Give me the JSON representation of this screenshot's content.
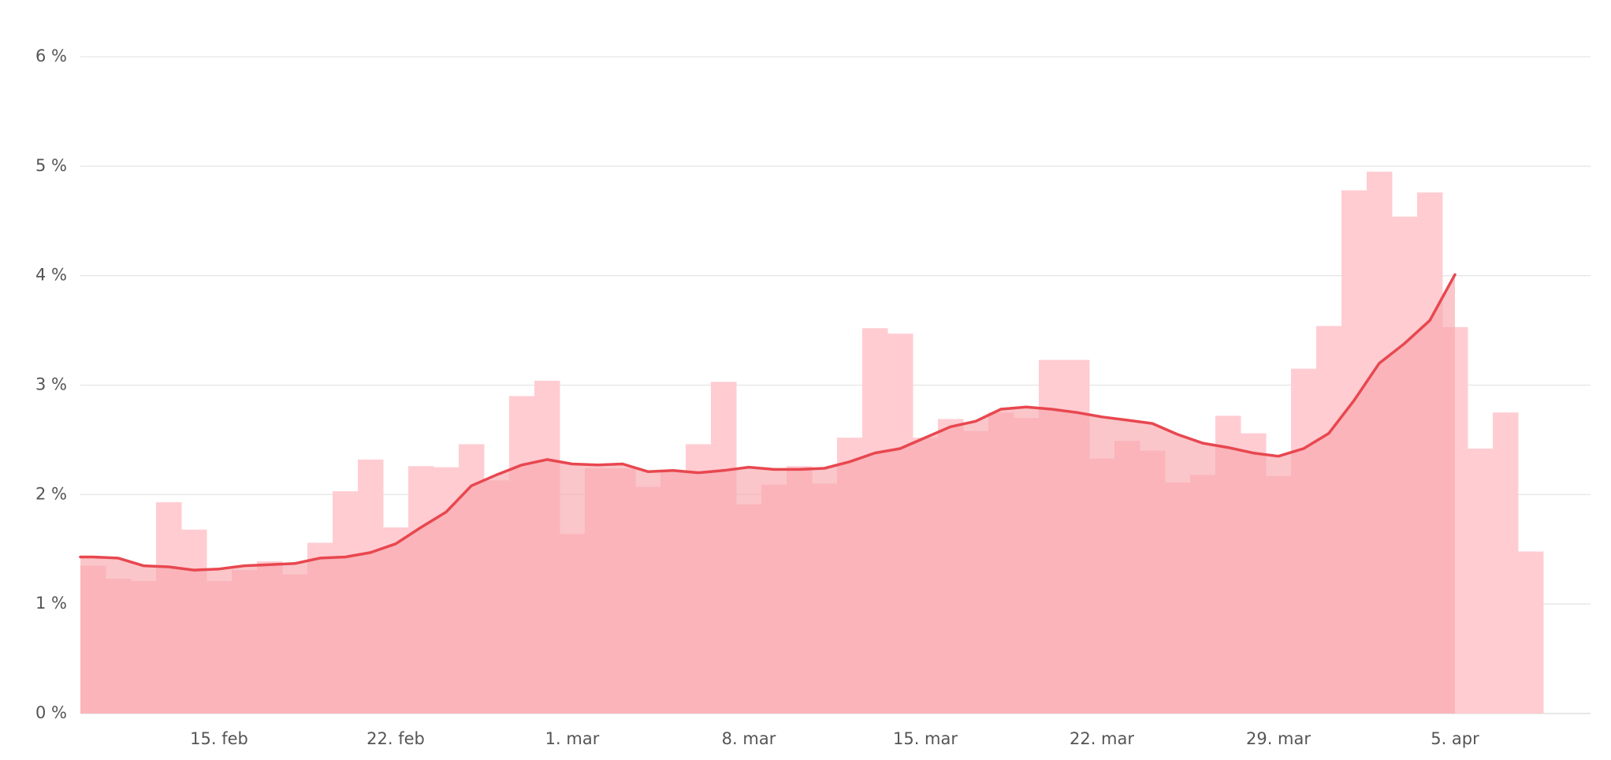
{
  "chart_data": {
    "type": "bar",
    "categories": [
      null,
      null,
      null,
      null,
      null,
      "15. feb",
      null,
      null,
      null,
      null,
      null,
      null,
      "22. feb",
      null,
      null,
      null,
      null,
      null,
      null,
      "1. mar",
      null,
      null,
      null,
      null,
      null,
      null,
      "8. mar",
      null,
      null,
      null,
      null,
      null,
      null,
      "15. mar",
      null,
      null,
      null,
      null,
      null,
      null,
      "22. mar",
      null,
      null,
      null,
      null,
      null,
      null,
      "29. mar",
      null,
      null,
      null,
      null,
      null,
      null,
      "5. apr",
      null,
      null,
      null
    ],
    "series": [
      {
        "type": "bar",
        "color": "#ffccd2",
        "values": [
          1.35,
          1.23,
          1.21,
          1.93,
          1.68,
          1.21,
          1.31,
          1.39,
          1.27,
          1.56,
          2.03,
          2.32,
          1.7,
          2.26,
          2.25,
          2.46,
          2.13,
          2.9,
          3.04,
          1.64,
          2.24,
          2.24,
          2.07,
          2.21,
          2.46,
          3.03,
          1.91,
          2.09,
          2.26,
          2.1,
          2.52,
          3.52,
          3.47,
          2.52,
          2.69,
          2.58,
          2.75,
          2.7,
          3.23,
          3.23,
          2.33,
          2.49,
          2.4,
          2.11,
          2.18,
          2.72,
          2.56,
          2.17,
          3.15,
          3.54,
          4.78,
          4.95,
          4.54,
          4.76,
          3.53,
          2.42,
          2.75,
          1.48
        ]
      },
      {
        "type": "line",
        "color": "#e8474f",
        "area_color": "#f7a8ad",
        "values": [
          1.43,
          1.42,
          1.35,
          1.34,
          1.31,
          1.32,
          1.35,
          1.36,
          1.37,
          1.42,
          1.43,
          1.47,
          1.55,
          1.7,
          1.84,
          2.08,
          2.18,
          2.27,
          2.32,
          2.28,
          2.27,
          2.28,
          2.21,
          2.22,
          2.2,
          2.22,
          2.25,
          2.23,
          2.23,
          2.24,
          2.3,
          2.38,
          2.42,
          2.52,
          2.62,
          2.67,
          2.78,
          2.8,
          2.78,
          2.75,
          2.71,
          2.68,
          2.65,
          2.55,
          2.47,
          2.43,
          2.38,
          2.35,
          2.42,
          2.56,
          2.86,
          3.2,
          3.38,
          3.59,
          4.01,
          null,
          null,
          null
        ]
      }
    ],
    "ylim": [
      0,
      6
    ],
    "yticks": [
      {
        "value": 0,
        "label": "0 %"
      },
      {
        "value": 1,
        "label": "1 %"
      },
      {
        "value": 2,
        "label": "2 %"
      },
      {
        "value": 3,
        "label": "3 %"
      },
      {
        "value": 4,
        "label": "4 %"
      },
      {
        "value": 5,
        "label": "5 %"
      },
      {
        "value": 6,
        "label": "6 %"
      }
    ],
    "grid": true
  }
}
